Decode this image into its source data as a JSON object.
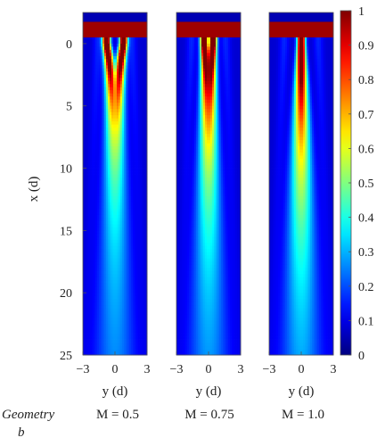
{
  "chart_data": {
    "type": "heatmap",
    "ylabel": "x (d)",
    "xlabel": "y (d)",
    "yticks": [
      0,
      5,
      10,
      15,
      20,
      25
    ],
    "xticks": [
      "−3",
      "0",
      "3"
    ],
    "xlim": [
      -3,
      3
    ],
    "ylim": [
      -2.5,
      25
    ],
    "colorbar": {
      "min": 0,
      "max": 1,
      "ticks": [
        "1",
        "0.9",
        "0.8",
        "0.7",
        "0.6",
        "0.5",
        "0.4",
        "0.3",
        "0.2",
        "0.1",
        "0"
      ],
      "colormap": "jet"
    },
    "panels": [
      {
        "label": "M = 0.5",
        "M": 0.5
      },
      {
        "label": "M = 0.75",
        "M": 0.75
      },
      {
        "label": "M = 1.0",
        "M": 1.0
      }
    ],
    "geometry_label": "Geometry",
    "geometry_value": "b"
  }
}
